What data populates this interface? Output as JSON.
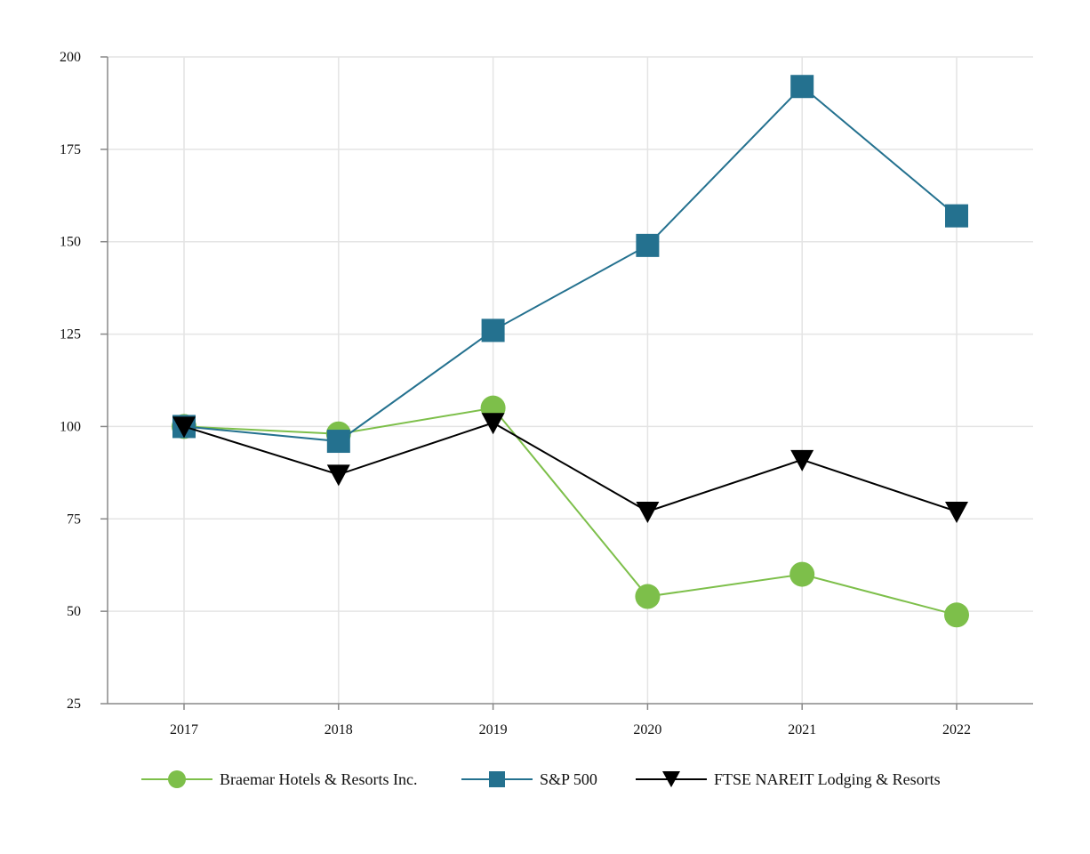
{
  "chart_data": {
    "type": "line",
    "title": "",
    "xlabel": "",
    "ylabel": "",
    "x": [
      "2017",
      "2018",
      "2019",
      "2020",
      "2021",
      "2022"
    ],
    "ylim": [
      25,
      200
    ],
    "yticks": [
      "25",
      "50",
      "75",
      "100",
      "125",
      "150",
      "175",
      "200"
    ],
    "grid": true,
    "legend_position": "bottom",
    "series": [
      {
        "name": "Braemar Hotels & Resorts Inc.",
        "marker": "circle",
        "color": "#7dbf4a",
        "values": [
          100,
          98,
          105,
          54,
          60,
          49
        ]
      },
      {
        "name": "S&P 500",
        "marker": "square",
        "color": "#24718f",
        "values": [
          100,
          96,
          126,
          149,
          192,
          157
        ]
      },
      {
        "name": "FTSE NAREIT Lodging & Resorts",
        "marker": "triangle-down",
        "color": "#000000",
        "values": [
          100,
          87,
          101,
          77,
          91,
          77
        ]
      }
    ]
  }
}
